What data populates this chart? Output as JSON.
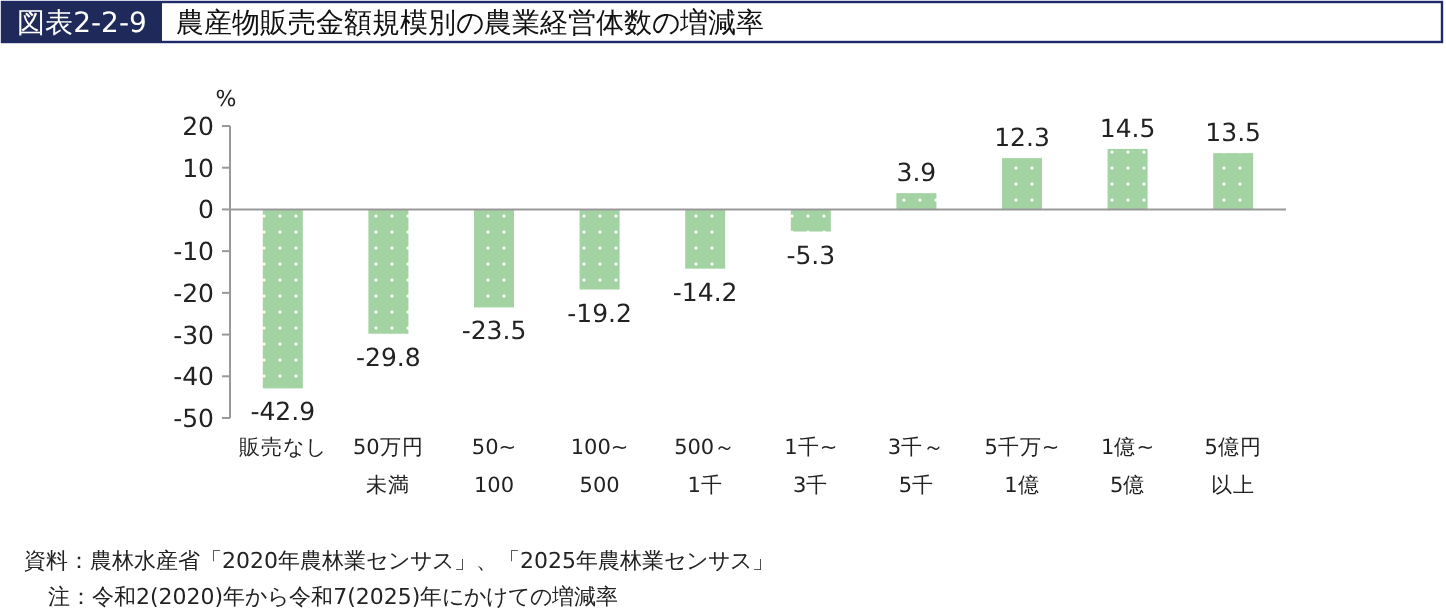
{
  "chart_data": {
    "type": "bar",
    "title": "農産物販売金額規模別の農業経営体数の増減率",
    "ylabel": "%",
    "categories": [
      "販売なし",
      "50万円未満",
      "50~100",
      "100~500",
      "500～1千",
      "1千~3千",
      "3千～5千",
      "5千万~1億",
      "1億~5億",
      "5億円以上"
    ],
    "values": [
      -42.9,
      -29.8,
      -23.5,
      -19.2,
      -14.2,
      -5.3,
      3.9,
      12.3,
      14.5,
      13.5
    ],
    "color": "#a3d3a3",
    "data_labels": true,
    "ylim": [
      -50,
      20
    ],
    "yticks": [
      -50,
      -40,
      -30,
      -20,
      -10,
      0,
      10,
      20
    ],
    "annotations": [
      "図表2-2-9",
      "資料：農林水産省「2020年農林業センサス」、「2025年農林業センサス」",
      "注：令和2(2020)年から令和7(2025)年にかけての増減率"
    ]
  }
}
